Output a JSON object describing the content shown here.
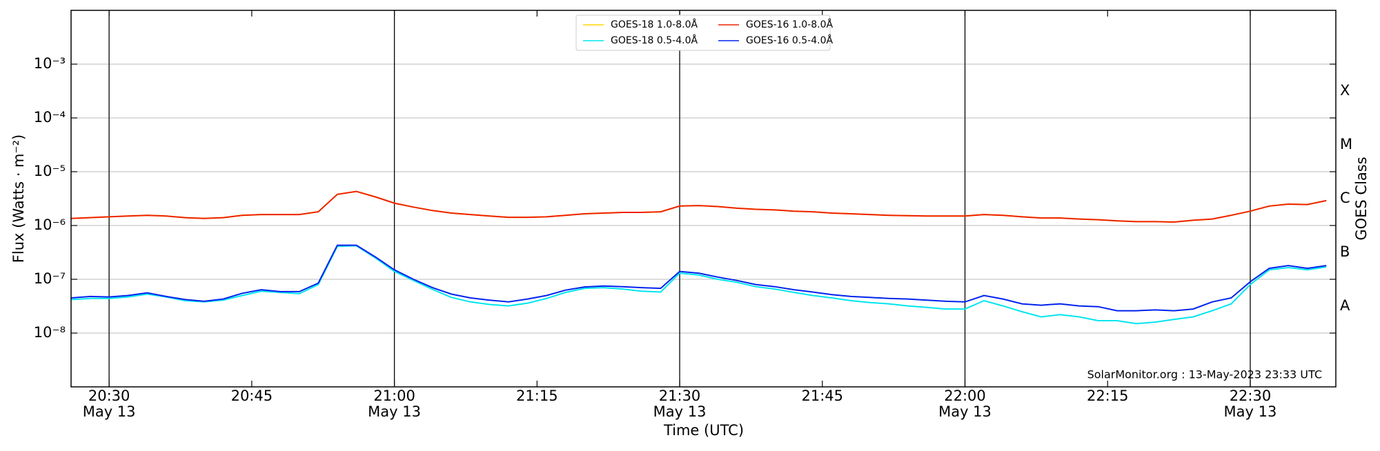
{
  "chart_data": {
    "type": "line",
    "xlabel": "Time (UTC)",
    "ylabel": "Flux (Watts · m⁻²)",
    "y2label": "GOES Class",
    "footer": "SolarMonitor.org : 13-May-2023 23:33 UTC",
    "log_y": true,
    "grid": true,
    "legend": "upper center",
    "xlim": [
      "20:26",
      "22:39"
    ],
    "ylim": [
      1e-09,
      0.01
    ],
    "yticks": [
      {
        "value": 1e-08,
        "label": "10⁻⁸"
      },
      {
        "value": 1e-07,
        "label": "10⁻⁷"
      },
      {
        "value": 1e-06,
        "label": "10⁻⁶"
      },
      {
        "value": 1e-05,
        "label": "10⁻⁵"
      },
      {
        "value": 0.0001,
        "label": "10⁻⁴"
      },
      {
        "value": 0.001,
        "label": "10⁻³"
      }
    ],
    "class_ticks": [
      {
        "value": 1e-08,
        "label": "A"
      },
      {
        "value": 1e-07,
        "label": "B"
      },
      {
        "value": 1e-06,
        "label": "C"
      },
      {
        "value": 1e-05,
        "label": "M"
      },
      {
        "value": 0.0001,
        "label": "X"
      }
    ],
    "xticks": [
      {
        "value": "20:30",
        "label": "20:30",
        "date": "May 13"
      },
      {
        "value": "20:45",
        "label": "20:45"
      },
      {
        "value": "21:00",
        "label": "21:00",
        "date": "May 13"
      },
      {
        "value": "21:15",
        "label": "21:15"
      },
      {
        "value": "21:30",
        "label": "21:30",
        "date": "May 13"
      },
      {
        "value": "21:45",
        "label": "21:45"
      },
      {
        "value": "22:00",
        "label": "22:00",
        "date": "May 13"
      },
      {
        "value": "22:15",
        "label": "22:15"
      },
      {
        "value": "22:30",
        "label": "22:30",
        "date": "May 13"
      }
    ],
    "vlines": [
      "20:30",
      "21:00",
      "21:30",
      "22:00",
      "22:30"
    ],
    "x": [
      "20:26",
      "20:28",
      "20:30",
      "20:32",
      "20:34",
      "20:36",
      "20:38",
      "20:40",
      "20:42",
      "20:44",
      "20:46",
      "20:48",
      "20:50",
      "20:52",
      "20:54",
      "20:56",
      "20:58",
      "21:00",
      "21:02",
      "21:04",
      "21:06",
      "21:08",
      "21:10",
      "21:12",
      "21:14",
      "21:16",
      "21:18",
      "21:20",
      "21:22",
      "21:24",
      "21:26",
      "21:28",
      "21:30",
      "21:32",
      "21:34",
      "21:36",
      "21:38",
      "21:40",
      "21:42",
      "21:44",
      "21:46",
      "21:48",
      "21:50",
      "21:52",
      "21:54",
      "21:56",
      "21:58",
      "22:00",
      "22:02",
      "22:04",
      "22:06",
      "22:08",
      "22:10",
      "22:12",
      "22:14",
      "22:16",
      "22:18",
      "22:20",
      "22:22",
      "22:24",
      "22:26",
      "22:28",
      "22:30",
      "22:32",
      "22:34",
      "22:36",
      "22:38"
    ],
    "series": [
      {
        "name": "GOES-18 1.0-8.0Å",
        "color": "#ffd700",
        "values": [
          1.35e-06,
          1.4e-06,
          1.45e-06,
          1.5e-06,
          1.55e-06,
          1.5e-06,
          1.4e-06,
          1.35e-06,
          1.4e-06,
          1.55e-06,
          1.6e-06,
          1.6e-06,
          1.6e-06,
          1.8e-06,
          3.8e-06,
          4.3e-06,
          3.4e-06,
          2.6e-06,
          2.2e-06,
          1.9e-06,
          1.7e-06,
          1.6e-06,
          1.5e-06,
          1.42e-06,
          1.42e-06,
          1.45e-06,
          1.55e-06,
          1.65e-06,
          1.7e-06,
          1.75e-06,
          1.75e-06,
          1.8e-06,
          2.3e-06,
          2.35e-06,
          2.25e-06,
          2.1e-06,
          2e-06,
          1.95e-06,
          1.85e-06,
          1.8e-06,
          1.7e-06,
          1.65e-06,
          1.6e-06,
          1.55e-06,
          1.52e-06,
          1.5e-06,
          1.5e-06,
          1.5e-06,
          1.6e-06,
          1.55e-06,
          1.45e-06,
          1.38e-06,
          1.38e-06,
          1.32e-06,
          1.28e-06,
          1.22e-06,
          1.18e-06,
          1.18e-06,
          1.16e-06,
          1.25e-06,
          1.32e-06,
          1.55e-06,
          1.85e-06,
          2.3e-06,
          2.5e-06,
          2.45e-06,
          2.9e-06
        ]
      },
      {
        "name": "GOES-18 0.5-4.0Å",
        "color": "#00e5ee",
        "values": [
          4.2e-08,
          4.4e-08,
          4.4e-08,
          4.7e-08,
          5.3e-08,
          4.7e-08,
          4e-08,
          3.8e-08,
          4.1e-08,
          5e-08,
          6e-08,
          5.7e-08,
          5.4e-08,
          8e-08,
          4.1e-07,
          4.2e-07,
          2.5e-07,
          1.4e-07,
          9.5e-08,
          6.5e-08,
          4.6e-08,
          3.8e-08,
          3.4e-08,
          3.2e-08,
          3.6e-08,
          4.4e-08,
          5.7e-08,
          6.8e-08,
          7e-08,
          6.6e-08,
          6e-08,
          5.8e-08,
          1.3e-07,
          1.2e-07,
          1e-07,
          8.8e-08,
          7.3e-08,
          6.6e-08,
          5.7e-08,
          5e-08,
          4.5e-08,
          4e-08,
          3.7e-08,
          3.5e-08,
          3.2e-08,
          3e-08,
          2.8e-08,
          2.8e-08,
          4e-08,
          3.2e-08,
          2.5e-08,
          2e-08,
          2.2e-08,
          2e-08,
          1.7e-08,
          1.7e-08,
          1.5e-08,
          1.6e-08,
          1.8e-08,
          2e-08,
          2.6e-08,
          3.5e-08,
          8e-08,
          1.5e-07,
          1.65e-07,
          1.5e-07,
          1.7e-07
        ]
      },
      {
        "name": "GOES-16 1.0-8.0Å",
        "color": "#ee2200",
        "values": [
          1.35e-06,
          1.4e-06,
          1.45e-06,
          1.5e-06,
          1.55e-06,
          1.5e-06,
          1.4e-06,
          1.35e-06,
          1.4e-06,
          1.55e-06,
          1.6e-06,
          1.6e-06,
          1.6e-06,
          1.8e-06,
          3.8e-06,
          4.3e-06,
          3.4e-06,
          2.6e-06,
          2.2e-06,
          1.9e-06,
          1.7e-06,
          1.6e-06,
          1.5e-06,
          1.42e-06,
          1.42e-06,
          1.45e-06,
          1.55e-06,
          1.65e-06,
          1.7e-06,
          1.75e-06,
          1.75e-06,
          1.8e-06,
          2.3e-06,
          2.35e-06,
          2.25e-06,
          2.1e-06,
          2e-06,
          1.95e-06,
          1.85e-06,
          1.8e-06,
          1.7e-06,
          1.65e-06,
          1.6e-06,
          1.55e-06,
          1.52e-06,
          1.5e-06,
          1.5e-06,
          1.5e-06,
          1.6e-06,
          1.55e-06,
          1.45e-06,
          1.38e-06,
          1.38e-06,
          1.32e-06,
          1.28e-06,
          1.22e-06,
          1.18e-06,
          1.18e-06,
          1.16e-06,
          1.25e-06,
          1.32e-06,
          1.55e-06,
          1.85e-06,
          2.3e-06,
          2.5e-06,
          2.45e-06,
          2.9e-06
        ]
      },
      {
        "name": "GOES-16 0.5-4.0Å",
        "color": "#0022ee",
        "values": [
          4.5e-08,
          4.8e-08,
          4.7e-08,
          5e-08,
          5.6e-08,
          4.8e-08,
          4.2e-08,
          3.9e-08,
          4.3e-08,
          5.5e-08,
          6.4e-08,
          5.9e-08,
          5.9e-08,
          8.5e-08,
          4.3e-07,
          4.3e-07,
          2.6e-07,
          1.5e-07,
          1e-07,
          7e-08,
          5.3e-08,
          4.5e-08,
          4.1e-08,
          3.8e-08,
          4.3e-08,
          5e-08,
          6.3e-08,
          7.2e-08,
          7.5e-08,
          7.3e-08,
          7e-08,
          6.8e-08,
          1.4e-07,
          1.3e-07,
          1.1e-07,
          9.5e-08,
          8e-08,
          7.3e-08,
          6.4e-08,
          5.8e-08,
          5.2e-08,
          4.8e-08,
          4.6e-08,
          4.4e-08,
          4.3e-08,
          4.1e-08,
          3.9e-08,
          3.8e-08,
          5e-08,
          4.3e-08,
          3.5e-08,
          3.3e-08,
          3.5e-08,
          3.2e-08,
          3.1e-08,
          2.6e-08,
          2.6e-08,
          2.7e-08,
          2.6e-08,
          2.8e-08,
          3.8e-08,
          4.5e-08,
          9e-08,
          1.6e-07,
          1.8e-07,
          1.6e-07,
          1.8e-07
        ]
      }
    ]
  }
}
